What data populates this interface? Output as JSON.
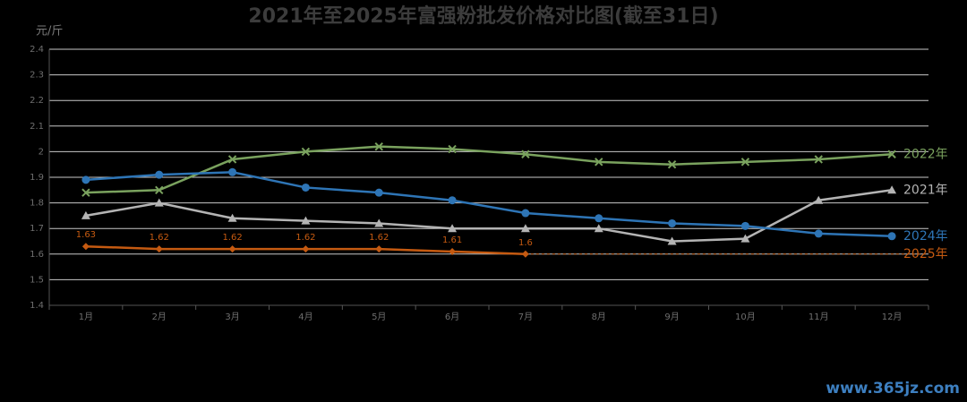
{
  "chart_data": {
    "type": "line",
    "title": "2021年至2025年富强粉批发价格对比图(截至31日)",
    "y_label": "元/斤",
    "watermark": "www.365jz.com",
    "categories": [
      "1月",
      "2月",
      "3月",
      "4月",
      "5月",
      "6月",
      "7月",
      "8月",
      "9月",
      "10月",
      "11月",
      "12月"
    ],
    "ylim": [
      1.4,
      2.4
    ],
    "yticks": [
      1.4,
      1.5,
      1.6,
      1.7,
      1.8,
      1.9,
      2,
      2.1,
      2.2,
      2.3,
      2.4
    ],
    "grid": true,
    "series": [
      {
        "name": "2021年",
        "color": "#b4b4b4",
        "marker": "triangle",
        "values": [
          1.75,
          1.8,
          1.74,
          1.73,
          1.72,
          1.7,
          1.7,
          1.7,
          1.65,
          1.66,
          1.81,
          1.85
        ]
      },
      {
        "name": "2022年",
        "color": "#7aa25e",
        "marker": "cross",
        "values": [
          1.84,
          1.85,
          1.97,
          2.0,
          2.02,
          2.01,
          1.99,
          1.96,
          1.95,
          1.96,
          1.97,
          1.99
        ]
      },
      {
        "name": "2024年",
        "color": "#2e75b6",
        "marker": "circle",
        "values": [
          1.89,
          1.91,
          1.92,
          1.86,
          1.84,
          1.81,
          1.76,
          1.74,
          1.72,
          1.71,
          1.68,
          1.67
        ]
      },
      {
        "name": "2025年",
        "color": "#c55a11",
        "marker": "diamond",
        "data_labels": true,
        "extend_last": true,
        "values": [
          1.63,
          1.62,
          1.62,
          1.62,
          1.62,
          1.61,
          1.6,
          null,
          null,
          null,
          null,
          null
        ]
      }
    ]
  }
}
